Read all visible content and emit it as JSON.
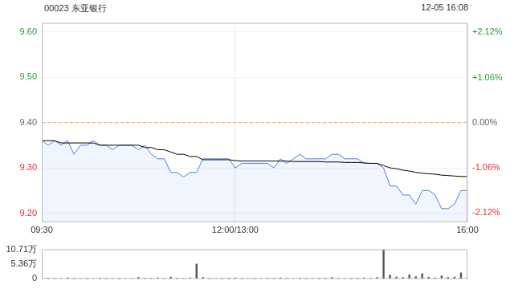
{
  "chart_data": [
    {
      "type": "line",
      "title": "00023 东亚银行",
      "subtitle": "12-05 16:08",
      "categories": [
        "09:30",
        null,
        null,
        null,
        null,
        null,
        null,
        null,
        null,
        null,
        null,
        null,
        null,
        null,
        null,
        null,
        null,
        null,
        null,
        null,
        null,
        null,
        null,
        null,
        null,
        null,
        null,
        null,
        null,
        null,
        "12:00/13:00",
        null,
        null,
        null,
        null,
        null,
        null,
        null,
        null,
        null,
        null,
        null,
        null,
        null,
        null,
        null,
        null,
        null,
        null,
        null,
        null,
        null,
        null,
        null,
        null,
        null,
        null,
        null,
        null,
        null,
        null,
        null,
        null,
        null,
        null,
        null,
        "16:00"
      ],
      "series": [
        {
          "type": "area",
          "color": "#4a7fe0",
          "values": [
            9.36,
            9.35,
            9.36,
            9.35,
            9.36,
            9.33,
            9.35,
            9.35,
            9.36,
            9.35,
            9.35,
            9.34,
            9.35,
            9.35,
            9.35,
            9.34,
            9.35,
            9.33,
            9.32,
            9.32,
            9.29,
            9.29,
            9.28,
            9.29,
            9.29,
            9.32,
            9.32,
            9.32,
            9.32,
            9.32,
            9.3,
            9.31,
            9.31,
            9.31,
            9.31,
            9.31,
            9.3,
            9.32,
            9.31,
            9.32,
            9.33,
            9.32,
            9.32,
            9.32,
            9.32,
            9.33,
            9.33,
            9.32,
            9.32,
            9.32,
            9.31,
            9.31,
            9.31,
            9.3,
            9.26,
            9.26,
            9.24,
            9.24,
            9.22,
            9.25,
            9.25,
            9.24,
            9.21,
            9.21,
            9.22,
            9.25,
            9.25
          ]
        },
        {
          "type": "line",
          "color": "#000000",
          "values": [
            9.36,
            9.36,
            9.36,
            9.355,
            9.355,
            9.355,
            9.355,
            9.355,
            9.355,
            9.35,
            9.35,
            9.35,
            9.35,
            9.35,
            9.35,
            9.35,
            9.345,
            9.345,
            9.34,
            9.34,
            9.335,
            9.33,
            9.33,
            9.325,
            9.325,
            9.318,
            9.318,
            9.318,
            9.318,
            9.318,
            9.316,
            9.315,
            9.315,
            9.315,
            9.315,
            9.315,
            9.315,
            9.315,
            9.315,
            9.314,
            9.314,
            9.314,
            9.314,
            9.314,
            9.313,
            9.313,
            9.313,
            9.312,
            9.312,
            9.312,
            9.311,
            9.31,
            9.31,
            9.305,
            9.3,
            9.298,
            9.295,
            9.293,
            9.29,
            9.288,
            9.287,
            9.286,
            9.284,
            9.283,
            9.282,
            9.281,
            9.281
          ]
        }
      ],
      "baseline": {
        "value": 9.4,
        "color": "#f5a05a",
        "line_style": "dashed"
      },
      "ylim": [
        9.18,
        9.62
      ],
      "yticks": [
        {
          "value": 9.2,
          "label": "9.20"
        },
        {
          "value": 9.3,
          "label": "9.30"
        },
        {
          "value": 9.4,
          "label": "9.40"
        },
        {
          "value": 9.5,
          "label": "9.50"
        },
        {
          "value": 9.6,
          "label": "9.60"
        }
      ],
      "y2lim": [
        -2.34,
        2.34
      ],
      "y2ticks": [
        {
          "value": -2.12,
          "label": "-2.12%"
        },
        {
          "value": -1.06,
          "label": "-1.06%"
        },
        {
          "value": 0,
          "label": "0.00%"
        },
        {
          "value": 1.06,
          "label": "+1.06%"
        },
        {
          "value": 2.12,
          "label": "+2.12%"
        }
      ],
      "grid": true
    },
    {
      "type": "bar",
      "categories": [
        "09:30",
        null,
        null,
        null,
        null,
        null,
        null,
        null,
        null,
        null,
        null,
        null,
        null,
        null,
        null,
        null,
        null,
        null,
        null,
        null,
        null,
        null,
        null,
        null,
        null,
        null,
        null,
        null,
        null,
        null,
        "12:00/13:00",
        null,
        null,
        null,
        null,
        null,
        null,
        null,
        null,
        null,
        null,
        null,
        null,
        null,
        null,
        null,
        null,
        null,
        null,
        null,
        null,
        null,
        null,
        null,
        null,
        null,
        null,
        null,
        null,
        null,
        null,
        null,
        null,
        null,
        null,
        null,
        "16:00"
      ],
      "values": [
        1.2,
        0.4,
        0.3,
        0.2,
        0.5,
        0.3,
        0.2,
        0.3,
        0.2,
        0.4,
        0.3,
        0.2,
        0.3,
        0.2,
        0.2,
        0.6,
        0.3,
        0.4,
        0.5,
        0.3,
        0.8,
        0.4,
        0.3,
        0.5,
        5.5,
        0.6,
        0.3,
        0.2,
        0.3,
        0.4,
        0.5,
        0.3,
        0.2,
        0.3,
        0.2,
        0.4,
        0.3,
        0.5,
        0.3,
        0.2,
        0.4,
        0.3,
        0.2,
        0.3,
        0.4,
        0.6,
        0.3,
        0.2,
        0.3,
        0.4,
        0.5,
        0.3,
        0.6,
        10.71,
        1.5,
        0.8,
        0.6,
        1.6,
        0.9,
        2.0,
        0.7,
        0.5,
        1.2,
        0.6,
        0.8,
        2.3,
        0.9
      ],
      "color": "#555555",
      "ylim": [
        0,
        10.71
      ],
      "yticks": [
        0,
        {
          "value": 5.36,
          "label": "5.36万"
        },
        {
          "value": 10.71,
          "label": "10.71万"
        }
      ],
      "tick_labels": "y",
      "grid": false
    }
  ]
}
